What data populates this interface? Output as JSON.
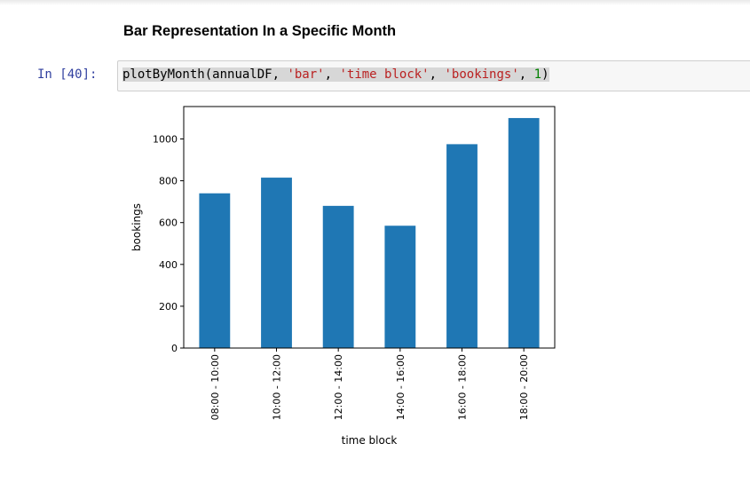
{
  "markdown": {
    "heading": "Bar Representation In a Specific Month"
  },
  "cell": {
    "prompt": "In [40]:",
    "code": {
      "func": "plotByMonth",
      "open": "(",
      "arg1": "annualDF",
      "sep1": ", ",
      "arg2": "'bar'",
      "sep2": ", ",
      "arg3": "'time block'",
      "sep3": ", ",
      "arg4": "'bookings'",
      "sep4": ", ",
      "arg5": "1",
      "close": ")"
    }
  },
  "colors": {
    "bar": "#1f77b4",
    "string": "#ba2121",
    "number": "#008000",
    "prompt": "#303f9f"
  },
  "chart_data": {
    "type": "bar",
    "categories": [
      "08:00 - 10:00",
      "10:00 - 12:00",
      "12:00 - 14:00",
      "14:00 - 16:00",
      "16:00 - 18:00",
      "18:00 - 20:00"
    ],
    "values": [
      740,
      815,
      680,
      585,
      975,
      1100
    ],
    "title": "",
    "xlabel": "time block",
    "ylabel": "bookings",
    "ylim": [
      0,
      1155
    ],
    "yticks": [
      0,
      200,
      400,
      600,
      800,
      1000
    ],
    "grid": false,
    "legend": "none"
  }
}
